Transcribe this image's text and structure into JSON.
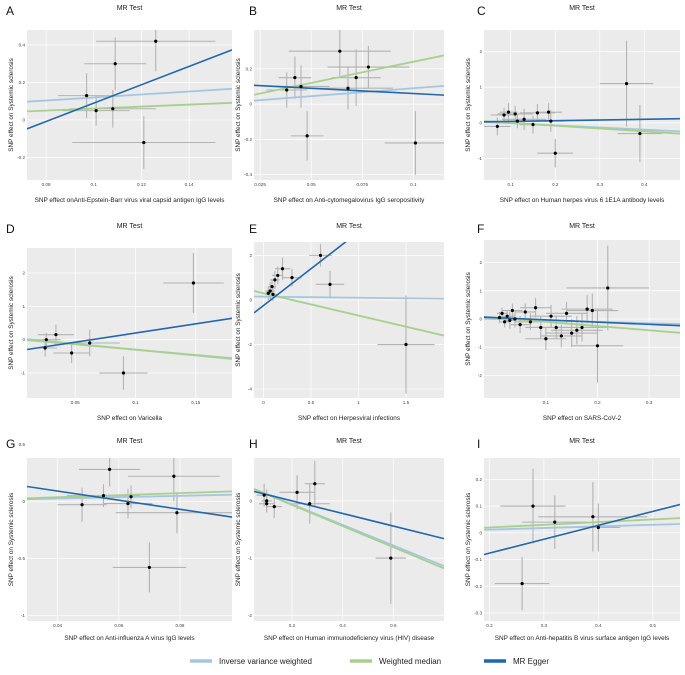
{
  "colors": {
    "panel_bg": "#ebebeb",
    "grid": "#ffffff",
    "errorbar": "#b3b3b3",
    "point": "#000000",
    "ivw": "#a6c6e0",
    "wm": "#a8d08d",
    "egger": "#2167ac"
  },
  "legend": {
    "items": [
      {
        "label": "Inverse variance weighted",
        "key": "ivw"
      },
      {
        "label": "Weighted median",
        "key": "wm"
      },
      {
        "label": "MR Egger",
        "key": "egger"
      }
    ]
  },
  "chart_data": [
    {
      "panel": "A",
      "type": "scatter",
      "title": "MR Test",
      "xlabel": "SNP effect onAnti-Epstein-Barr virus viral capsid antigen IgG levels",
      "ylabel": "SNP effect on Systemic sclerosis",
      "xlim": [
        0.072,
        0.158
      ],
      "ylim": [
        -0.32,
        0.48
      ],
      "xticks": [
        0.08,
        0.1,
        0.12,
        0.14
      ],
      "yticks": [
        -0.2,
        0.0,
        0.2,
        0.4
      ],
      "points": [
        {
          "x": 0.097,
          "y": 0.13,
          "xerr": 0.012,
          "yerr": 0.12
        },
        {
          "x": 0.101,
          "y": 0.05,
          "xerr": 0.014,
          "yerr": 0.08
        },
        {
          "x": 0.108,
          "y": 0.06,
          "xerr": 0.018,
          "yerr": 0.1
        },
        {
          "x": 0.109,
          "y": 0.3,
          "xerr": 0.013,
          "yerr": 0.14
        },
        {
          "x": 0.121,
          "y": -0.12,
          "xerr": 0.03,
          "yerr": 0.14
        },
        {
          "x": 0.126,
          "y": 0.42,
          "xerr": 0.025,
          "yerr": 0.16
        }
      ],
      "lines": {
        "ivw": {
          "intercept": 0.04,
          "slope": 0.8
        },
        "wm": {
          "intercept": 0.008,
          "slope": 0.53
        },
        "egger": {
          "intercept": -0.4,
          "slope": 4.9
        }
      }
    },
    {
      "panel": "B",
      "type": "scatter",
      "title": "MR Test",
      "xlabel": "SNP effect on Anti-cytomegalovirus IgG seropositivity",
      "ylabel": "SNP effect on Systemic sclerosis",
      "xlim": [
        0.022,
        0.115
      ],
      "ylim": [
        -0.43,
        0.42
      ],
      "xticks": [
        0.025,
        0.05,
        0.075,
        0.1
      ],
      "yticks": [
        -0.4,
        -0.2,
        0.0,
        0.2
      ],
      "points": [
        {
          "x": 0.038,
          "y": 0.08,
          "xerr": 0.01,
          "yerr": 0.1
        },
        {
          "x": 0.042,
          "y": 0.15,
          "xerr": 0.008,
          "yerr": 0.12
        },
        {
          "x": 0.045,
          "y": 0.1,
          "xerr": 0.014,
          "yerr": 0.12
        },
        {
          "x": 0.048,
          "y": -0.18,
          "xerr": 0.008,
          "yerr": 0.14
        },
        {
          "x": 0.064,
          "y": 0.3,
          "xerr": 0.025,
          "yerr": 0.14
        },
        {
          "x": 0.068,
          "y": 0.09,
          "xerr": 0.022,
          "yerr": 0.12
        },
        {
          "x": 0.072,
          "y": 0.15,
          "xerr": 0.012,
          "yerr": 0.16
        },
        {
          "x": 0.078,
          "y": 0.21,
          "xerr": 0.02,
          "yerr": 0.12
        },
        {
          "x": 0.101,
          "y": -0.22,
          "xerr": 0.015,
          "yerr": 0.18
        }
      ],
      "lines": {
        "ivw": {
          "intercept": 0.0,
          "slope": 0.9
        },
        "wm": {
          "intercept": 0.0,
          "slope": 2.4
        },
        "egger": {
          "intercept": 0.12,
          "slope": -0.6
        }
      }
    },
    {
      "panel": "C",
      "type": "scatter",
      "title": "MR Test",
      "xlabel": "SNP effect on Human herpes virus 6 1E1A antibody levels",
      "ylabel": "SNP effect on Systemic sclerosis",
      "xlim": [
        0.04,
        0.48
      ],
      "ylim": [
        -1.6,
        2.6
      ],
      "xticks": [
        0.1,
        0.2,
        0.3,
        0.4
      ],
      "yticks": [
        -1,
        0,
        1,
        2
      ],
      "points": [
        {
          "x": 0.07,
          "y": -0.1,
          "xerr": 0.03,
          "yerr": 0.25
        },
        {
          "x": 0.085,
          "y": 0.22,
          "xerr": 0.03,
          "yerr": 0.2
        },
        {
          "x": 0.095,
          "y": 0.3,
          "xerr": 0.02,
          "yerr": 0.25
        },
        {
          "x": 0.11,
          "y": 0.25,
          "xerr": 0.04,
          "yerr": 0.22
        },
        {
          "x": 0.115,
          "y": 0.05,
          "xerr": 0.03,
          "yerr": 0.2
        },
        {
          "x": 0.13,
          "y": 0.1,
          "xerr": 0.05,
          "yerr": 0.3
        },
        {
          "x": 0.15,
          "y": -0.05,
          "xerr": 0.03,
          "yerr": 0.25
        },
        {
          "x": 0.16,
          "y": 0.28,
          "xerr": 0.04,
          "yerr": 0.25
        },
        {
          "x": 0.185,
          "y": 0.3,
          "xerr": 0.03,
          "yerr": 0.25
        },
        {
          "x": 0.19,
          "y": 0.05,
          "xerr": 0.03,
          "yerr": 0.3
        },
        {
          "x": 0.2,
          "y": -0.85,
          "xerr": 0.04,
          "yerr": 0.4
        },
        {
          "x": 0.36,
          "y": 1.1,
          "xerr": 0.06,
          "yerr": 1.2
        },
        {
          "x": 0.39,
          "y": -0.3,
          "xerr": 0.05,
          "yerr": 0.8
        }
      ],
      "lines": {
        "ivw": {
          "intercept": 0.05,
          "slope": -0.6
        },
        "wm": {
          "intercept": 0.08,
          "slope": -0.8
        },
        "egger": {
          "intercept": 0.02,
          "slope": 0.2
        }
      }
    },
    {
      "panel": "D",
      "type": "scatter",
      "title": "MR Test",
      "xlabel": "SNP effect on Varicella",
      "ylabel": "SNP effect on Systemic sclerosis",
      "xlim": [
        0.01,
        0.18
      ],
      "ylim": [
        -1.75,
        2.75
      ],
      "xticks": [
        0.05,
        0.1,
        0.15
      ],
      "yticks": [
        -1,
        0,
        1,
        2
      ],
      "points": [
        {
          "x": 0.025,
          "y": -0.25,
          "xerr": 0.01,
          "yerr": 0.25
        },
        {
          "x": 0.026,
          "y": 0.0,
          "xerr": 0.012,
          "yerr": 0.2
        },
        {
          "x": 0.034,
          "y": 0.15,
          "xerr": 0.015,
          "yerr": 0.3
        },
        {
          "x": 0.047,
          "y": -0.4,
          "xerr": 0.015,
          "yerr": 0.3
        },
        {
          "x": 0.062,
          "y": -0.1,
          "xerr": 0.025,
          "yerr": 0.4
        },
        {
          "x": 0.09,
          "y": -1.0,
          "xerr": 0.02,
          "yerr": 0.5
        },
        {
          "x": 0.148,
          "y": 1.7,
          "xerr": 0.025,
          "yerr": 0.9
        }
      ],
      "lines": {
        "ivw": {
          "intercept": 0.05,
          "slope": -3.5
        },
        "wm": {
          "intercept": 0.02,
          "slope": -3.2
        },
        "egger": {
          "intercept": -0.35,
          "slope": 5.5
        }
      }
    },
    {
      "panel": "E",
      "type": "scatter",
      "title": "MR Test",
      "xlabel": "SNP effect on Herpesviral infections",
      "ylabel": "SNP effect on Systemic sclerosis",
      "xlim": [
        -0.1,
        1.9
      ],
      "ylim": [
        -4.4,
        2.6
      ],
      "xticks": [
        0.0,
        0.5,
        1.0,
        1.5
      ],
      "yticks": [
        -4,
        -2,
        0,
        2
      ],
      "points": [
        {
          "x": 0.05,
          "y": 0.3,
          "xerr": 0.05,
          "yerr": 0.3
        },
        {
          "x": 0.07,
          "y": 0.4,
          "xerr": 0.05,
          "yerr": 0.4
        },
        {
          "x": 0.09,
          "y": 0.6,
          "xerr": 0.04,
          "yerr": 0.3
        },
        {
          "x": 0.1,
          "y": 0.25,
          "xerr": 0.05,
          "yerr": 0.3
        },
        {
          "x": 0.12,
          "y": 0.9,
          "xerr": 0.05,
          "yerr": 0.4
        },
        {
          "x": 0.15,
          "y": 1.1,
          "xerr": 0.06,
          "yerr": 0.4
        },
        {
          "x": 0.2,
          "y": 1.4,
          "xerr": 0.08,
          "yerr": 0.5
        },
        {
          "x": 0.3,
          "y": 1.0,
          "xerr": 0.1,
          "yerr": 0.4
        },
        {
          "x": 0.6,
          "y": 2.0,
          "xerr": 0.12,
          "yerr": 0.5
        },
        {
          "x": 0.7,
          "y": 0.7,
          "xerr": 0.15,
          "yerr": 0.6
        },
        {
          "x": 1.5,
          "y": -2.0,
          "xerr": 0.3,
          "yerr": 2.2
        }
      ],
      "lines": {
        "ivw": {
          "intercept": 0.15,
          "slope": -0.05
        },
        "wm": {
          "intercept": 0.3,
          "slope": -1.0
        },
        "egger": {
          "intercept": -0.25,
          "slope": 3.3
        }
      }
    },
    {
      "panel": "F",
      "type": "scatter",
      "title": "MR Test",
      "xlabel": "SNP effect on SARS-CoV-2",
      "ylabel": "SNP effect on Systemic sclerosis",
      "xlim": [
        -0.02,
        0.36
      ],
      "ylim": [
        -2.8,
        2.8
      ],
      "xticks": [
        0.1,
        0.2,
        0.3
      ],
      "yticks": [
        -2,
        -1,
        0,
        1,
        2
      ],
      "points": [
        {
          "x": 0.01,
          "y": 0.05,
          "xerr": 0.01,
          "yerr": 0.2
        },
        {
          "x": 0.015,
          "y": 0.2,
          "xerr": 0.01,
          "yerr": 0.2
        },
        {
          "x": 0.02,
          "y": -0.1,
          "xerr": 0.01,
          "yerr": 0.2
        },
        {
          "x": 0.025,
          "y": 0.1,
          "xerr": 0.015,
          "yerr": 0.2
        },
        {
          "x": 0.03,
          "y": -0.05,
          "xerr": 0.01,
          "yerr": 0.3
        },
        {
          "x": 0.035,
          "y": 0.3,
          "xerr": 0.02,
          "yerr": 0.25
        },
        {
          "x": 0.04,
          "y": 0.0,
          "xerr": 0.02,
          "yerr": 0.3
        },
        {
          "x": 0.05,
          "y": -0.2,
          "xerr": 0.02,
          "yerr": 0.3
        },
        {
          "x": 0.06,
          "y": 0.25,
          "xerr": 0.02,
          "yerr": 0.3
        },
        {
          "x": 0.07,
          "y": -0.1,
          "xerr": 0.03,
          "yerr": 0.3
        },
        {
          "x": 0.08,
          "y": 0.4,
          "xerr": 0.03,
          "yerr": 0.35
        },
        {
          "x": 0.09,
          "y": -0.3,
          "xerr": 0.03,
          "yerr": 0.4
        },
        {
          "x": 0.1,
          "y": -0.7,
          "xerr": 0.04,
          "yerr": 0.4
        },
        {
          "x": 0.11,
          "y": 0.1,
          "xerr": 0.04,
          "yerr": 0.4
        },
        {
          "x": 0.12,
          "y": -0.3,
          "xerr": 0.04,
          "yerr": 0.4
        },
        {
          "x": 0.13,
          "y": -0.6,
          "xerr": 0.04,
          "yerr": 0.4
        },
        {
          "x": 0.14,
          "y": 0.2,
          "xerr": 0.04,
          "yerr": 0.4
        },
        {
          "x": 0.15,
          "y": -0.5,
          "xerr": 0.05,
          "yerr": 0.5
        },
        {
          "x": 0.16,
          "y": -0.4,
          "xerr": 0.05,
          "yerr": 0.5
        },
        {
          "x": 0.17,
          "y": -0.3,
          "xerr": 0.05,
          "yerr": 0.5
        },
        {
          "x": 0.18,
          "y": 0.35,
          "xerr": 0.05,
          "yerr": 0.5
        },
        {
          "x": 0.19,
          "y": 0.3,
          "xerr": 0.05,
          "yerr": 0.6
        },
        {
          "x": 0.2,
          "y": -0.95,
          "xerr": 0.05,
          "yerr": 1.3
        },
        {
          "x": 0.22,
          "y": 1.1,
          "xerr": 0.08,
          "yerr": 1.5
        }
      ],
      "lines": {
        "ivw": {
          "intercept": 0.0,
          "slope": -0.5
        },
        "wm": {
          "intercept": 0.05,
          "slope": -1.5
        },
        "egger": {
          "intercept": 0.05,
          "slope": -0.8
        }
      }
    },
    {
      "panel": "G",
      "type": "scatter",
      "title": "MR Test",
      "xlabel": "SNP effect on Anti-influenza A virus IgG levels",
      "ylabel": "SNP effect on Systemic sclerosis",
      "xlim": [
        0.03,
        0.097
      ],
      "ylim": [
        -1.05,
        0.38
      ],
      "xticks": [
        0.04,
        0.06,
        0.08
      ],
      "yticks": [
        -1.0,
        -0.5,
        0.0,
        0.5
      ],
      "points": [
        {
          "x": 0.048,
          "y": -0.03,
          "xerr": 0.008,
          "yerr": 0.15
        },
        {
          "x": 0.055,
          "y": 0.05,
          "xerr": 0.012,
          "yerr": 0.1
        },
        {
          "x": 0.057,
          "y": 0.28,
          "xerr": 0.01,
          "yerr": 0.15
        },
        {
          "x": 0.063,
          "y": -0.02,
          "xerr": 0.008,
          "yerr": 0.13
        },
        {
          "x": 0.064,
          "y": 0.04,
          "xerr": 0.006,
          "yerr": 0.1
        },
        {
          "x": 0.078,
          "y": 0.22,
          "xerr": 0.015,
          "yerr": 0.22
        },
        {
          "x": 0.079,
          "y": -0.1,
          "xerr": 0.02,
          "yerr": 0.18
        },
        {
          "x": 0.07,
          "y": -0.58,
          "xerr": 0.012,
          "yerr": 0.22
        }
      ],
      "lines": {
        "ivw": {
          "intercept": 0.0,
          "slope": 0.6
        },
        "wm": {
          "intercept": 0.0,
          "slope": 0.9
        },
        "egger": {
          "intercept": 0.25,
          "slope": -4.0
        }
      }
    },
    {
      "panel": "H",
      "type": "scatter",
      "title": "MR Test",
      "xlabel": "SNP effect on Human immunodeficiency virus (HIV) disease",
      "ylabel": "SNP effect on Systemic sclerosis",
      "xlim": [
        0.05,
        0.8
      ],
      "ylim": [
        -2.1,
        0.75
      ],
      "xticks": [
        0.2,
        0.4,
        0.6
      ],
      "yticks": [
        -2,
        -1,
        0
      ],
      "points": [
        {
          "x": 0.09,
          "y": 0.1,
          "xerr": 0.03,
          "yerr": 0.2
        },
        {
          "x": 0.1,
          "y": -0.05,
          "xerr": 0.03,
          "yerr": 0.15
        },
        {
          "x": 0.1,
          "y": 0.0,
          "xerr": 0.02,
          "yerr": 0.2
        },
        {
          "x": 0.13,
          "y": -0.1,
          "xerr": 0.03,
          "yerr": 0.2
        },
        {
          "x": 0.22,
          "y": 0.15,
          "xerr": 0.07,
          "yerr": 0.3
        },
        {
          "x": 0.27,
          "y": -0.05,
          "xerr": 0.08,
          "yerr": 0.35
        },
        {
          "x": 0.29,
          "y": 0.3,
          "xerr": 0.04,
          "yerr": 0.4
        },
        {
          "x": 0.59,
          "y": -1.0,
          "xerr": 0.06,
          "yerr": 0.8
        }
      ],
      "lines": {
        "ivw": {
          "intercept": 0.3,
          "slope": -1.8
        },
        "wm": {
          "intercept": 0.3,
          "slope": -1.85
        },
        "egger": {
          "intercept": 0.22,
          "slope": -1.1
        }
      }
    },
    {
      "panel": "I",
      "type": "scatter",
      "title": "MR Test",
      "xlabel": "SNP effect on Anti-hepatitis B virus surface antigen IgG levels",
      "ylabel": "SNP effect on Systemic sclerosis",
      "xlim": [
        0.19,
        0.55
      ],
      "ylim": [
        -0.33,
        0.28
      ],
      "xticks": [
        0.2,
        0.3,
        0.4,
        0.5
      ],
      "yticks": [
        -0.3,
        -0.2,
        -0.1,
        0.0,
        0.1,
        0.2
      ],
      "points": [
        {
          "x": 0.26,
          "y": -0.19,
          "xerr": 0.05,
          "yerr": 0.1
        },
        {
          "x": 0.28,
          "y": 0.1,
          "xerr": 0.06,
          "yerr": 0.14
        },
        {
          "x": 0.32,
          "y": 0.04,
          "xerr": 0.06,
          "yerr": 0.1
        },
        {
          "x": 0.39,
          "y": 0.06,
          "xerr": 0.1,
          "yerr": 0.13
        },
        {
          "x": 0.4,
          "y": 0.02,
          "xerr": 0.04,
          "yerr": 0.09
        }
      ],
      "lines": {
        "ivw": {
          "intercept": 0.0,
          "slope": 0.06
        },
        "wm": {
          "intercept": 0.0,
          "slope": 0.1
        },
        "egger": {
          "intercept": -0.18,
          "slope": 0.52
        }
      }
    }
  ]
}
